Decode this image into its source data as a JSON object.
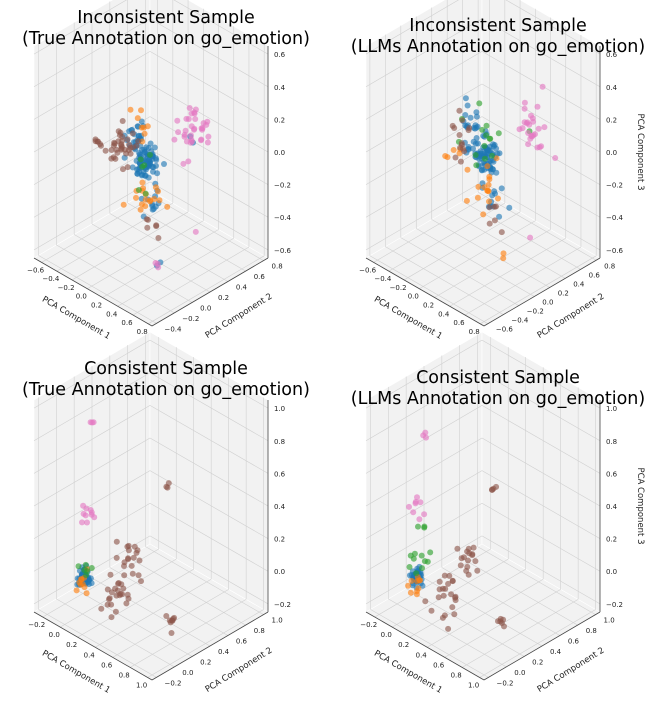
{
  "figure": {
    "colors": {
      "blue": "#1f77b4",
      "orange": "#ff7f0e",
      "green": "#2ca02c",
      "brown": "#8c564b",
      "pink": "#e377c2",
      "pane": "#f2f2f2",
      "grid": "#d0d0d0"
    }
  },
  "chart_data": [
    {
      "type": "scatter",
      "title_line1": "Inconsistent Sample",
      "title_line2": "(True Annotation on go_emotion)",
      "xlabel": "PCA Component 1",
      "ylabel": "PCA Component 2",
      "zlabel": "",
      "xticks": [
        "−0.6",
        "−0.4",
        "−0.2",
        "0.0",
        "0.2",
        "0.4",
        "0.6",
        "0.8"
      ],
      "yticks": [
        "−0.4",
        "−0.2",
        "0.0",
        "0.2",
        "0.4",
        "0.6",
        "0.8"
      ],
      "zticks": [
        "−0.6",
        "−0.4",
        "−0.2",
        "0.0",
        "0.2",
        "0.4",
        "0.6"
      ],
      "xlim": [
        -0.7,
        0.85
      ],
      "ylim": [
        -0.45,
        0.85
      ],
      "zlim": [
        -0.65,
        0.65
      ],
      "grid": true,
      "series": [
        {
          "color": "#1f77b4",
          "clusters": [
            {
              "x": 0.05,
              "y": 0.15,
              "z": -0.05,
              "n": 70,
              "s": 0.05
            },
            {
              "x": -0.12,
              "y": 0.2,
              "z": 0.05,
              "n": 25,
              "s": 0.05
            },
            {
              "x": 0.2,
              "y": 0.1,
              "z": -0.25,
              "n": 12,
              "s": 0.05
            },
            {
              "x": 0.65,
              "y": 0.15,
              "z": 0.25,
              "n": 2,
              "s": 0.01
            },
            {
              "x": 0.75,
              "y": -0.3,
              "z": -0.35,
              "n": 2,
              "s": 0.01
            }
          ]
        },
        {
          "color": "#ff7f0e",
          "clusters": [
            {
              "x": 0.15,
              "y": 0.08,
              "z": -0.2,
              "n": 18,
              "s": 0.07
            },
            {
              "x": -0.05,
              "y": 0.2,
              "z": 0.1,
              "n": 8,
              "s": 0.06
            }
          ]
        },
        {
          "color": "#2ca02c",
          "clusters": [
            {
              "x": 0.05,
              "y": 0.15,
              "z": -0.1,
              "n": 6,
              "s": 0.06
            }
          ]
        },
        {
          "color": "#8c564b",
          "clusters": [
            {
              "x": -0.35,
              "y": 0.25,
              "z": -0.1,
              "n": 35,
              "s": 0.06
            },
            {
              "x": -0.55,
              "y": 0.15,
              "z": -0.1,
              "n": 6,
              "s": 0.02
            },
            {
              "x": 0.25,
              "y": 0.05,
              "z": -0.35,
              "n": 6,
              "s": 0.04
            }
          ]
        },
        {
          "color": "#e377c2",
          "clusters": [
            {
              "x": 0.35,
              "y": 0.45,
              "z": 0.15,
              "n": 30,
              "s": 0.08
            },
            {
              "x": 0.65,
              "y": 0.15,
              "z": 0.25,
              "n": 4,
              "s": 0.02
            },
            {
              "x": 0.75,
              "y": -0.3,
              "z": -0.35,
              "n": 3,
              "s": 0.02
            },
            {
              "x": 0.55,
              "y": 0.3,
              "z": -0.4,
              "n": 1,
              "s": 0.01
            }
          ]
        }
      ]
    },
    {
      "type": "scatter",
      "title_line1": "Inconsistent Sample",
      "title_line2": "(LLMs Annotation on go_emotion)",
      "xlabel": "PCA Component 1",
      "ylabel": "PCA Component 2",
      "zlabel": "PCA Component 3",
      "xticks": [
        "−0.6",
        "−0.4",
        "−0.2",
        "0.0",
        "0.2",
        "0.4",
        "0.6",
        "0.8"
      ],
      "yticks": [
        "−0.6",
        "−0.4",
        "−0.2",
        "0.0",
        "0.2",
        "0.4",
        "0.6",
        "0.8"
      ],
      "zticks": [
        "−0.6",
        "−0.4",
        "−0.2",
        "0.0",
        "0.2",
        "0.4",
        "0.6"
      ],
      "xlim": [
        -0.7,
        0.85
      ],
      "ylim": [
        -0.65,
        0.85
      ],
      "zlim": [
        -0.65,
        0.65
      ],
      "grid": true,
      "series": [
        {
          "color": "#1f77b4",
          "clusters": [
            {
              "x": 0.05,
              "y": 0.15,
              "z": -0.05,
              "n": 70,
              "s": 0.05
            },
            {
              "x": -0.15,
              "y": 0.2,
              "z": 0.05,
              "n": 25,
              "s": 0.06
            },
            {
              "x": 0.2,
              "y": 0.1,
              "z": -0.25,
              "n": 10,
              "s": 0.05
            }
          ]
        },
        {
          "color": "#ff7f0e",
          "clusters": [
            {
              "x": 0.15,
              "y": 0.05,
              "z": -0.2,
              "n": 16,
              "s": 0.08
            },
            {
              "x": -0.4,
              "y": 0.2,
              "z": -0.15,
              "n": 5,
              "s": 0.04
            },
            {
              "x": 0.75,
              "y": -0.3,
              "z": -0.35,
              "n": 2,
              "s": 0.01
            }
          ]
        },
        {
          "color": "#2ca02c",
          "clusters": [
            {
              "x": -0.05,
              "y": 0.2,
              "z": 0.0,
              "n": 14,
              "s": 0.08
            },
            {
              "x": 0.65,
              "y": 0.15,
              "z": 0.25,
              "n": 1,
              "s": 0.01
            }
          ]
        },
        {
          "color": "#8c564b",
          "clusters": [
            {
              "x": -0.35,
              "y": 0.25,
              "z": -0.1,
              "n": 14,
              "s": 0.06
            },
            {
              "x": 0.25,
              "y": 0.05,
              "z": -0.35,
              "n": 6,
              "s": 0.04
            }
          ]
        },
        {
          "color": "#e377c2",
          "clusters": [
            {
              "x": 0.35,
              "y": 0.45,
              "z": 0.15,
              "n": 24,
              "s": 0.08
            },
            {
              "x": 0.65,
              "y": 0.15,
              "z": 0.25,
              "n": 2,
              "s": 0.02
            },
            {
              "x": 0.5,
              "y": 0.3,
              "z": -0.45,
              "n": 1,
              "s": 0.01
            }
          ]
        }
      ]
    },
    {
      "type": "scatter",
      "title_line1": "Consistent Sample",
      "title_line2": "(True Annotation on go_emotion)",
      "xlabel": "PCA Component 1",
      "ylabel": "PCA Component 2",
      "zlabel": "",
      "xticks": [
        "−0.2",
        "0.0",
        "0.2",
        "0.4",
        "0.6",
        "0.8",
        "1.0"
      ],
      "yticks": [
        "−0.2",
        "0.0",
        "0.2",
        "0.4",
        "0.6",
        "0.8",
        "1.0"
      ],
      "zticks": [
        "−0.2",
        "0.0",
        "0.2",
        "0.4",
        "0.6",
        "0.8",
        "1.0"
      ],
      "xlim": [
        -0.3,
        1.05
      ],
      "ylim": [
        -0.25,
        1.05
      ],
      "zlim": [
        -0.25,
        1.05
      ],
      "grid": true,
      "series": [
        {
          "color": "#1f77b4",
          "clusters": [
            {
              "x": 0.02,
              "y": 0.0,
              "z": -0.02,
              "n": 50,
              "s": 0.025
            }
          ]
        },
        {
          "color": "#ff7f0e",
          "clusters": [
            {
              "x": 0.03,
              "y": -0.02,
              "z": -0.05,
              "n": 10,
              "s": 0.03
            }
          ]
        },
        {
          "color": "#2ca02c",
          "clusters": [
            {
              "x": 0.01,
              "y": 0.02,
              "z": 0.0,
              "n": 6,
              "s": 0.025
            }
          ]
        },
        {
          "color": "#8c564b",
          "clusters": [
            {
              "x": 0.35,
              "y": 0.05,
              "z": -0.05,
              "n": 24,
              "s": 0.07
            },
            {
              "x": 0.05,
              "y": 0.5,
              "z": -0.05,
              "n": 18,
              "s": 0.06
            },
            {
              "x": 0.9,
              "y": 0.1,
              "z": -0.05,
              "n": 8,
              "s": 0.02
            },
            {
              "x": 0.1,
              "y": 0.85,
              "z": 0.3,
              "n": 3,
              "s": 0.01
            }
          ]
        },
        {
          "color": "#e377c2",
          "clusters": [
            {
              "x": -0.05,
              "y": 0.1,
              "z": 0.35,
              "n": 10,
              "s": 0.04
            },
            {
              "x": -0.22,
              "y": 0.3,
              "z": 0.75,
              "n": 3,
              "s": 0.015
            }
          ]
        }
      ]
    },
    {
      "type": "scatter",
      "title_line1": "Consistent Sample",
      "title_line2": "(LLMs Annotation on go_emotion)",
      "xlabel": "PCA Component 1",
      "ylabel": "PCA Component 2",
      "zlabel": "PCA Component 3",
      "xticks": [
        "−0.2",
        "0.0",
        "0.2",
        "0.4",
        "0.6",
        "0.8",
        "1.0"
      ],
      "yticks": [
        "−0.2",
        "0.0",
        "0.2",
        "0.4",
        "0.6",
        "0.8",
        "1.0"
      ],
      "zticks": [
        "−0.2",
        "0.0",
        "0.2",
        "0.4",
        "0.6",
        "0.8",
        "1.0"
      ],
      "xlim": [
        -0.3,
        1.05
      ],
      "ylim": [
        -0.25,
        1.05
      ],
      "zlim": [
        -0.25,
        1.05
      ],
      "grid": true,
      "series": [
        {
          "color": "#1f77b4",
          "clusters": [
            {
              "x": 0.02,
              "y": 0.0,
              "z": -0.02,
              "n": 40,
              "s": 0.025
            }
          ]
        },
        {
          "color": "#ff7f0e",
          "clusters": [
            {
              "x": 0.03,
              "y": -0.02,
              "z": -0.05,
              "n": 10,
              "s": 0.03
            }
          ]
        },
        {
          "color": "#2ca02c",
          "clusters": [
            {
              "x": 0.0,
              "y": 0.05,
              "z": 0.05,
              "n": 10,
              "s": 0.04
            },
            {
              "x": -0.05,
              "y": 0.15,
              "z": 0.2,
              "n": 3,
              "s": 0.02
            }
          ]
        },
        {
          "color": "#8c564b",
          "clusters": [
            {
              "x": 0.3,
              "y": 0.05,
              "z": -0.05,
              "n": 22,
              "s": 0.07
            },
            {
              "x": 0.05,
              "y": 0.5,
              "z": -0.05,
              "n": 16,
              "s": 0.06
            },
            {
              "x": 0.9,
              "y": 0.1,
              "z": -0.05,
              "n": 6,
              "s": 0.02
            },
            {
              "x": 0.1,
              "y": 0.8,
              "z": 0.3,
              "n": 4,
              "s": 0.015
            }
          ]
        },
        {
          "color": "#e377c2",
          "clusters": [
            {
              "x": -0.05,
              "y": 0.1,
              "z": 0.35,
              "n": 8,
              "s": 0.04
            },
            {
              "x": -0.2,
              "y": 0.3,
              "z": 0.7,
              "n": 3,
              "s": 0.015
            }
          ]
        }
      ]
    }
  ]
}
